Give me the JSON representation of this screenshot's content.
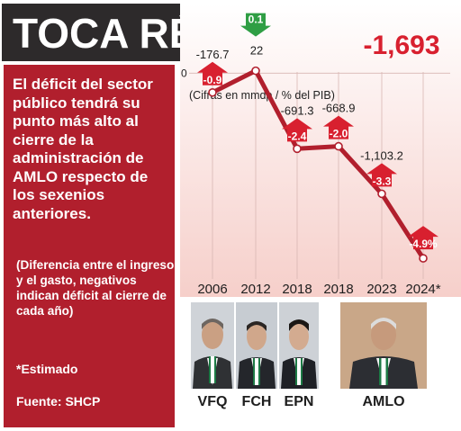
{
  "title": "TOCA RÉCORD",
  "side": {
    "lead": "El déficit del sector público tendrá su punto más alto al cierre de la administración de AMLO respecto de los sexenios anteriores.",
    "note": "(Diferencia entre el ingreso y el gasto, negativos indican déficit al cierre de cada año)",
    "estimate": "*Estimado",
    "source": "Fuente: SHCP"
  },
  "colors": {
    "accent": "#b11f2d",
    "line": "#b11f2d",
    "up_arrow": "#d8202f",
    "down_arrow": "#2f9e44",
    "title_bg": "#2d2a2b"
  },
  "chart_data": {
    "type": "line",
    "units": "(Cifras en mmdp / % del PIB)",
    "baseline_label": "0",
    "categories": [
      "2006",
      "2012",
      "2018",
      "2018",
      "2023",
      "2024*"
    ],
    "values": [
      -176.7,
      22,
      -691.3,
      -668.9,
      -1103.2,
      -1693
    ],
    "value_labels": [
      "-176.7",
      "22",
      "-691.3",
      "-668.9",
      "-1,103.2",
      "-1,693"
    ],
    "pib_labels": [
      "-0.9",
      "0.1",
      "-2.4",
      "-2.0",
      "-3.3",
      "-4.9%"
    ],
    "arrow_directions": [
      "up",
      "down",
      "up",
      "up",
      "up",
      "up"
    ],
    "ylim": [
      -1750,
      60
    ],
    "grid": true
  },
  "presidents": [
    "VFQ",
    "FCH",
    "EPN",
    "AMLO"
  ]
}
